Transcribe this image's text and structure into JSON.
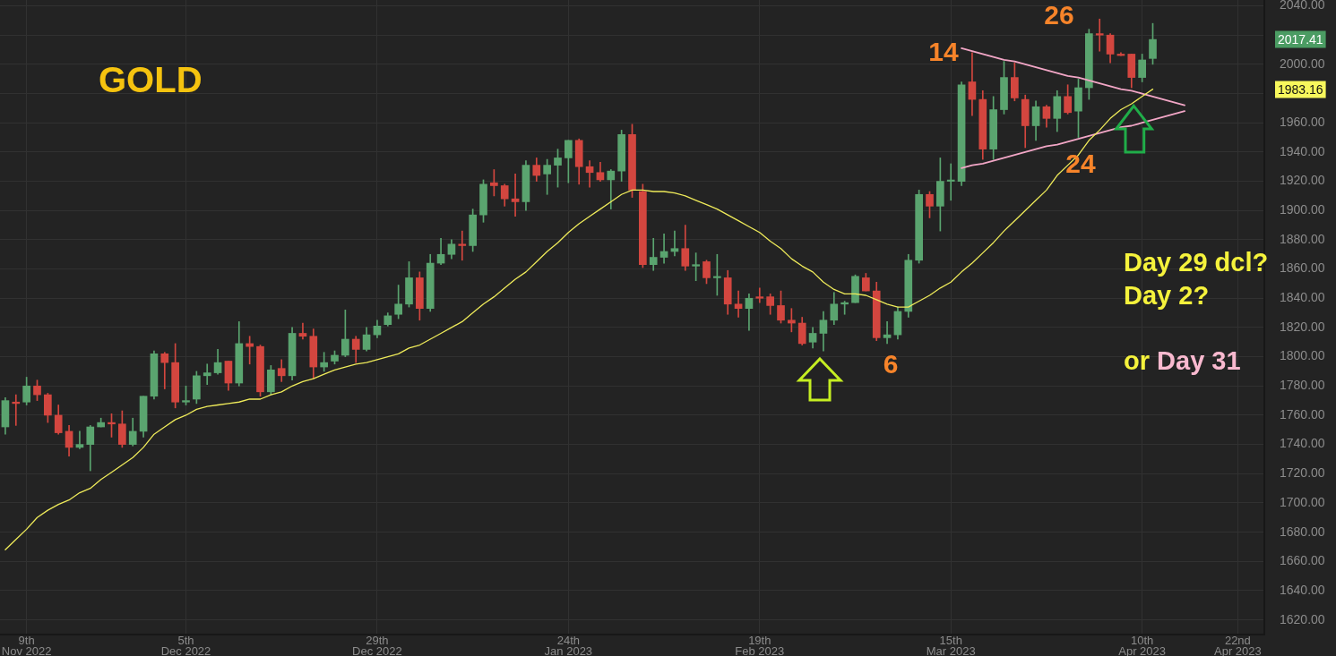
{
  "chart_data": {
    "type": "candlestick",
    "title": "GOLD",
    "categories": [
      null,
      null,
      "9th Nov 2022",
      null,
      null,
      null,
      null,
      null,
      null,
      null,
      null,
      null,
      null,
      null,
      null,
      null,
      null,
      "5th Dec 2022",
      null,
      null,
      null,
      null,
      null,
      null,
      null,
      null,
      null,
      null,
      null,
      null,
      null,
      null,
      null,
      null,
      null,
      "29th Dec 2022",
      null,
      null,
      null,
      null,
      null,
      null,
      null,
      null,
      null,
      null,
      null,
      null,
      null,
      null,
      null,
      null,
      null,
      "24th Jan 2023",
      null,
      null,
      null,
      null,
      null,
      null,
      null,
      null,
      null,
      null,
      null,
      null,
      null,
      null,
      null,
      null,
      null,
      "19th Feb 2023",
      null,
      null,
      null,
      null,
      null,
      null,
      null,
      null,
      null,
      null,
      null,
      null,
      null,
      null,
      null,
      null,
      null,
      "15th Mar 2023",
      null,
      null,
      null,
      null,
      null,
      null,
      null,
      null,
      null,
      null,
      null,
      null,
      null,
      null,
      null,
      null,
      null,
      "10th Apr 2023",
      null,
      null,
      null,
      null,
      null,
      null,
      null,
      null,
      "22nd Apr 2023",
      null,
      null
    ],
    "ohlc": [
      [
        1752,
        1772,
        1747,
        1770
      ],
      [
        1769,
        1774,
        1753,
        1768
      ],
      [
        1769,
        1786,
        1767,
        1780
      ],
      [
        1780,
        1784,
        1770,
        1774
      ],
      [
        1774,
        1775,
        1755,
        1760
      ],
      [
        1760,
        1767,
        1747,
        1748
      ],
      [
        1749,
        1753,
        1732,
        1738
      ],
      [
        1738,
        1749,
        1737,
        1740
      ],
      [
        1740,
        1753,
        1722,
        1752
      ],
      [
        1752,
        1758,
        1752,
        1755
      ],
      [
        1755,
        1761,
        1745,
        1754
      ],
      [
        1754,
        1763,
        1738,
        1740
      ],
      [
        1740,
        1758,
        1739,
        1749
      ],
      [
        1749,
        1773,
        1745,
        1773
      ],
      [
        1773,
        1804,
        1771,
        1802
      ],
      [
        1802,
        1803,
        1778,
        1796
      ],
      [
        1796,
        1809,
        1765,
        1769
      ],
      [
        1769,
        1780,
        1767,
        1770
      ],
      [
        1771,
        1790,
        1768,
        1787
      ],
      [
        1787,
        1795,
        1781,
        1789
      ],
      [
        1789,
        1805,
        1788,
        1796
      ],
      [
        1797,
        1797,
        1777,
        1782
      ],
      [
        1782,
        1824,
        1780,
        1809
      ],
      [
        1809,
        1814,
        1795,
        1807
      ],
      [
        1807,
        1808,
        1773,
        1776
      ],
      [
        1776,
        1794,
        1774,
        1791
      ],
      [
        1792,
        1798,
        1783,
        1787
      ],
      [
        1787,
        1820,
        1784,
        1816
      ],
      [
        1816,
        1823,
        1812,
        1814
      ],
      [
        1814,
        1819,
        1785,
        1793
      ],
      [
        1793,
        1803,
        1790,
        1796
      ],
      [
        1797,
        1804,
        1795,
        1801
      ],
      [
        1801,
        1832,
        1800,
        1812
      ],
      [
        1812,
        1814,
        1796,
        1805
      ],
      [
        1805,
        1820,
        1804,
        1815
      ],
      [
        1815,
        1825,
        1813,
        1821
      ],
      [
        1822,
        1830,
        1821,
        1828
      ],
      [
        1829,
        1849,
        1826,
        1836
      ],
      [
        1836,
        1865,
        1834,
        1854
      ],
      [
        1854,
        1858,
        1825,
        1833
      ],
      [
        1833,
        1870,
        1831,
        1864
      ],
      [
        1864,
        1881,
        1863,
        1870
      ],
      [
        1870,
        1880,
        1867,
        1877
      ],
      [
        1877,
        1886,
        1866,
        1876
      ],
      [
        1876,
        1901,
        1872,
        1897
      ],
      [
        1897,
        1921,
        1892,
        1918
      ],
      [
        1919,
        1928,
        1910,
        1917
      ],
      [
        1917,
        1918,
        1903,
        1908
      ],
      [
        1908,
        1925,
        1896,
        1906
      ],
      [
        1906,
        1934,
        1900,
        1931
      ],
      [
        1931,
        1936,
        1920,
        1924
      ],
      [
        1925,
        1935,
        1911,
        1931
      ],
      [
        1931,
        1942,
        1916,
        1936
      ],
      [
        1936,
        1948,
        1919,
        1948
      ],
      [
        1948,
        1949,
        1918,
        1930
      ],
      [
        1930,
        1934,
        1916,
        1926
      ],
      [
        1926,
        1933,
        1920,
        1921
      ],
      [
        1921,
        1928,
        1901,
        1927
      ],
      [
        1927,
        1955,
        1920,
        1952
      ],
      [
        1952,
        1959,
        1909,
        1914
      ],
      [
        1913,
        1918,
        1861,
        1863
      ],
      [
        1863,
        1881,
        1859,
        1868
      ],
      [
        1868,
        1884,
        1864,
        1872
      ],
      [
        1872,
        1886,
        1869,
        1874
      ],
      [
        1874,
        1890,
        1859,
        1862
      ],
      [
        1862,
        1871,
        1852,
        1863
      ],
      [
        1865,
        1866,
        1850,
        1854
      ],
      [
        1854,
        1870,
        1842,
        1854
      ],
      [
        1854,
        1859,
        1829,
        1836
      ],
      [
        1836,
        1845,
        1827,
        1833
      ],
      [
        1833,
        1843,
        1818,
        1840
      ],
      [
        1841,
        1847,
        1837,
        1840
      ],
      [
        1841,
        1843,
        1829,
        1835
      ],
      [
        1835,
        1845,
        1823,
        1825
      ],
      [
        1825,
        1833,
        1817,
        1823
      ],
      [
        1823,
        1827,
        1808,
        1809
      ],
      [
        1810,
        1820,
        1806,
        1816
      ],
      [
        1816,
        1831,
        1804,
        1825
      ],
      [
        1825,
        1844,
        1822,
        1836
      ],
      [
        1836,
        1838,
        1829,
        1837
      ],
      [
        1837,
        1856,
        1837,
        1855
      ],
      [
        1854,
        1857,
        1845,
        1845
      ],
      [
        1845,
        1851,
        1811,
        1813
      ],
      [
        1813,
        1824,
        1809,
        1815
      ],
      [
        1815,
        1834,
        1812,
        1831
      ],
      [
        1831,
        1870,
        1827,
        1866
      ],
      [
        1866,
        1914,
        1864,
        1911
      ],
      [
        1911,
        1913,
        1895,
        1903
      ],
      [
        1903,
        1936,
        1886,
        1920
      ],
      [
        1920,
        1932,
        1907,
        1920
      ],
      [
        1920,
        1988,
        1917,
        1986
      ],
      [
        1988,
        2008,
        1965,
        1976
      ],
      [
        1976,
        1982,
        1935,
        1942
      ],
      [
        1942,
        1978,
        1935,
        1969
      ],
      [
        1969,
        2002,
        1966,
        1991
      ],
      [
        1991,
        2001,
        1975,
        1977
      ],
      [
        1976,
        1979,
        1943,
        1958
      ],
      [
        1958,
        1975,
        1948,
        1971
      ],
      [
        1971,
        1972,
        1957,
        1963
      ],
      [
        1963,
        1982,
        1954,
        1978
      ],
      [
        1978,
        1986,
        1966,
        1967
      ],
      [
        1968,
        1990,
        1950,
        1984
      ],
      [
        1984,
        2024,
        1976,
        2021
      ],
      [
        2021,
        2031,
        2009,
        2020
      ],
      [
        2020,
        2021,
        2001,
        2007
      ],
      [
        2007,
        2008,
        2006,
        2006
      ],
      [
        2007,
        2007,
        1984,
        1991
      ],
      [
        1991,
        2007,
        1988,
        2003
      ],
      [
        2004,
        2028,
        2000,
        2017
      ],
      null,
      null,
      null,
      null,
      null,
      null,
      null,
      null,
      null,
      null
    ],
    "colors": [
      "#5aa46f",
      "#d3463f",
      "#5aa46f",
      "#d3463f",
      "#d3463f",
      "#d3463f",
      "#d3463f",
      "#5aa46f",
      "#5aa46f",
      "#5aa46f",
      "#d3463f",
      "#d3463f",
      "#5aa46f",
      "#5aa46f",
      "#5aa46f",
      "#d3463f",
      "#d3463f",
      "#5aa46f",
      "#5aa46f",
      "#5aa46f",
      "#5aa46f",
      "#d3463f",
      "#5aa46f",
      "#d3463f",
      "#d3463f",
      "#5aa46f",
      "#d3463f",
      "#5aa46f",
      "#d3463f",
      "#d3463f",
      "#5aa46f",
      "#5aa46f",
      "#5aa46f",
      "#d3463f",
      "#5aa46f",
      "#5aa46f",
      "#5aa46f",
      "#5aa46f",
      "#5aa46f",
      "#d3463f",
      "#5aa46f",
      "#5aa46f",
      "#5aa46f",
      "#d3463f",
      "#5aa46f",
      "#5aa46f",
      "#d3463f",
      "#d3463f",
      "#d3463f",
      "#5aa46f",
      "#d3463f",
      "#5aa46f",
      "#5aa46f",
      "#5aa46f",
      "#d3463f",
      "#d3463f",
      "#d3463f",
      "#5aa46f",
      "#5aa46f",
      "#d3463f",
      "#d3463f",
      "#5aa46f",
      "#5aa46f",
      "#5aa46f",
      "#d3463f",
      "#5aa46f",
      "#d3463f",
      "#5aa46f",
      "#d3463f",
      "#d3463f",
      "#5aa46f",
      "#d3463f",
      "#d3463f",
      "#d3463f",
      "#d3463f",
      "#d3463f",
      "#5aa46f",
      "#5aa46f",
      "#5aa46f",
      "#5aa46f",
      "#5aa46f",
      "#d3463f",
      "#d3463f",
      "#5aa46f",
      "#5aa46f",
      "#5aa46f",
      "#5aa46f",
      "#d3463f",
      "#5aa46f",
      "#5aa46f",
      "#5aa46f",
      "#d3463f",
      "#d3463f",
      "#5aa46f",
      "#5aa46f",
      "#d3463f",
      "#d3463f",
      "#5aa46f",
      "#d3463f",
      "#5aa46f",
      "#d3463f",
      "#5aa46f",
      "#5aa46f",
      "#d3463f",
      "#d3463f",
      "#d3463f",
      "#d3463f",
      "#5aa46f",
      "#5aa46f",
      null,
      null,
      null,
      null,
      null,
      null,
      null,
      null,
      null,
      null
    ],
    "series": [
      {
        "type": "line",
        "color": "#efeb5a",
        "values": [
          1668,
          1675,
          1682,
          1690,
          1695,
          1699,
          1702,
          1707,
          1710,
          1716,
          1721,
          1726,
          1731,
          1738,
          1747,
          1752,
          1757,
          1760,
          1764,
          1766,
          1767,
          1768,
          1769,
          1771,
          1771,
          1774,
          1776,
          1780,
          1783,
          1785,
          1788,
          1791,
          1793,
          1795,
          1796,
          1798,
          1800,
          1802,
          1806,
          1808,
          1812,
          1816,
          1820,
          1824,
          1830,
          1836,
          1841,
          1847,
          1853,
          1858,
          1865,
          1872,
          1878,
          1885,
          1891,
          1896,
          1901,
          1906,
          1911,
          1914,
          1914,
          1913,
          1913,
          1912,
          1910,
          1907,
          1904,
          1901,
          1897,
          1893,
          1889,
          1885,
          1879,
          1874,
          1867,
          1862,
          1858,
          1851,
          1846,
          1843,
          1843,
          1842,
          1839,
          1836,
          1834,
          1834,
          1838,
          1842,
          1847,
          1851,
          1858,
          1864,
          1871,
          1878,
          1886,
          1893,
          1900,
          1907,
          1914,
          1924,
          1931,
          1938,
          1948,
          1955,
          1963,
          1969,
          1973,
          1978,
          1983,
          null,
          null,
          null,
          null,
          null,
          null,
          null,
          null,
          null,
          null
        ]
      },
      {
        "type": "line",
        "color": "#f2a6c6",
        "values": [
          null,
          null,
          null,
          null,
          null,
          null,
          null,
          null,
          null,
          null,
          null,
          null,
          null,
          null,
          null,
          null,
          null,
          null,
          null,
          null,
          null,
          null,
          null,
          null,
          null,
          null,
          null,
          null,
          null,
          null,
          null,
          null,
          null,
          null,
          null,
          null,
          null,
          null,
          null,
          null,
          null,
          null,
          null,
          null,
          null,
          null,
          null,
          null,
          null,
          null,
          null,
          null,
          null,
          null,
          null,
          null,
          null,
          null,
          null,
          null,
          null,
          null,
          null,
          null,
          null,
          null,
          null,
          null,
          null,
          null,
          null,
          null,
          null,
          null,
          null,
          null,
          null,
          null,
          null,
          null,
          null,
          null,
          null,
          null,
          null,
          null,
          null,
          null,
          null,
          null,
          2011,
          2009,
          2007,
          2005,
          2003,
          2002,
          2000,
          1998,
          1996,
          1994,
          1992,
          1991,
          1989,
          1987,
          1985,
          1983,
          1982,
          1980,
          1978,
          1976,
          1974,
          1972,
          null,
          null,
          null,
          null,
          null,
          null,
          null
        ]
      },
      {
        "type": "line",
        "color": "#f2a6c6",
        "values": [
          null,
          null,
          null,
          null,
          null,
          null,
          null,
          null,
          null,
          null,
          null,
          null,
          null,
          null,
          null,
          null,
          null,
          null,
          null,
          null,
          null,
          null,
          null,
          null,
          null,
          null,
          null,
          null,
          null,
          null,
          null,
          null,
          null,
          null,
          null,
          null,
          null,
          null,
          null,
          null,
          null,
          null,
          null,
          null,
          null,
          null,
          null,
          null,
          null,
          null,
          null,
          null,
          null,
          null,
          null,
          null,
          null,
          null,
          null,
          null,
          null,
          null,
          null,
          null,
          null,
          null,
          null,
          null,
          null,
          null,
          null,
          null,
          null,
          null,
          null,
          null,
          null,
          null,
          null,
          null,
          null,
          null,
          null,
          null,
          null,
          null,
          null,
          null,
          null,
          null,
          1929,
          1931,
          1932,
          1934,
          1936,
          1938,
          1940,
          1942,
          1944,
          1945,
          1947,
          1949,
          1951,
          1953,
          1955,
          1957,
          1958,
          1960,
          1962,
          1964,
          1966,
          1968,
          null,
          null,
          null,
          null,
          null,
          null,
          null
        ]
      }
    ],
    "ylim": [
      1610,
      2044
    ],
    "yticks": [
      {
        "value": 1620,
        "label": "1620.00"
      },
      {
        "value": 1640,
        "label": "1640.00"
      },
      {
        "value": 1660,
        "label": "1660.00"
      },
      {
        "value": 1680,
        "label": "1680.00"
      },
      {
        "value": 1700,
        "label": "1700.00"
      },
      {
        "value": 1720,
        "label": "1720.00"
      },
      {
        "value": 1740,
        "label": "1740.00"
      },
      {
        "value": 1760,
        "label": "1760.00"
      },
      {
        "value": 1780,
        "label": "1780.00"
      },
      {
        "value": 1800,
        "label": "1800.00"
      },
      {
        "value": 1820,
        "label": "1820.00"
      },
      {
        "value": 1840,
        "label": "1840.00"
      },
      {
        "value": 1860,
        "label": "1860.00"
      },
      {
        "value": 1880,
        "label": "1880.00"
      },
      {
        "value": 1900,
        "label": "1900.00"
      },
      {
        "value": 1920,
        "label": "1920.00"
      },
      {
        "value": 1940,
        "label": "1940.00"
      },
      {
        "value": 1960,
        "label": "1960.00"
      },
      {
        "value": 1980,
        "label": null
      },
      {
        "value": 2000,
        "label": "2000.00"
      },
      {
        "value": 2020,
        "label": null
      },
      {
        "value": 2040,
        "label": "2040.00"
      }
    ],
    "grid": true,
    "annotations": [
      "14",
      "26",
      "24",
      "6",
      "Day 29 dcl?",
      "Day 2?",
      "or Day 31",
      "2017.41",
      "1983.16"
    ]
  }
}
